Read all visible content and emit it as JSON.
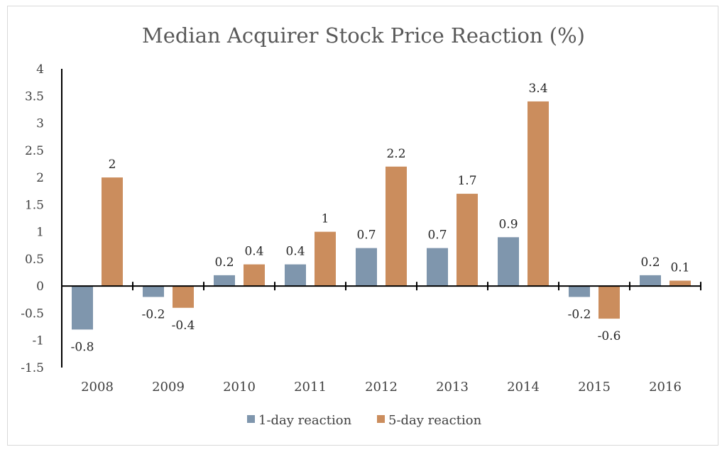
{
  "chart_data": {
    "type": "bar",
    "title": "Median Acquirer Stock Price Reaction (%)",
    "xlabel": "",
    "ylabel": "",
    "ylim": [
      -1.5,
      4
    ],
    "yticks": [
      "4",
      "3.5",
      "3",
      "2.5",
      "2",
      "1.5",
      "1",
      "0.5",
      "0",
      "-0.5",
      "-1",
      "-1.5"
    ],
    "ytick_values": [
      4,
      3.5,
      3,
      2.5,
      2,
      1.5,
      1,
      0.5,
      0,
      -0.5,
      -1,
      -1.5
    ],
    "categories": [
      "2008",
      "2009",
      "2010",
      "2011",
      "2012",
      "2013",
      "2014",
      "2015",
      "2016"
    ],
    "series": [
      {
        "name": "1-day reaction",
        "color": "#7f96ad",
        "values": [
          -0.8,
          -0.2,
          0.2,
          0.4,
          0.7,
          0.7,
          0.9,
          -0.2,
          0.2
        ]
      },
      {
        "name": "5-day reaction",
        "color": "#cb8d5d",
        "values": [
          2,
          -0.4,
          0.4,
          1,
          2.2,
          1.7,
          3.4,
          -0.6,
          0.1
        ]
      }
    ],
    "grid": false,
    "legend": "bottom"
  }
}
